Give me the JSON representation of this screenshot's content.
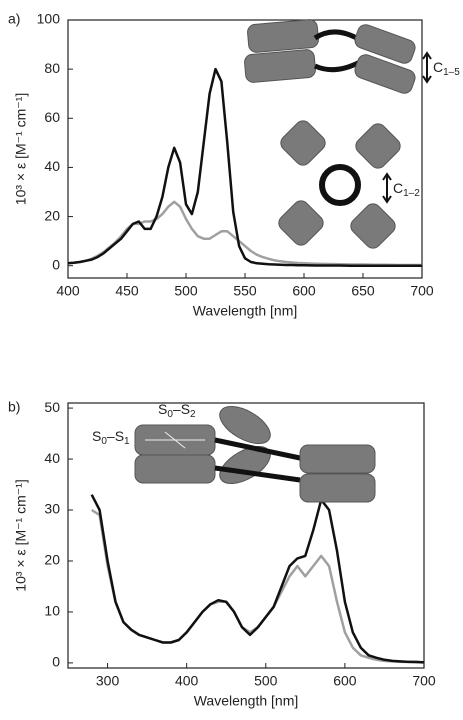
{
  "chart_data": [
    {
      "type": "line",
      "panel": "a)",
      "x_label": "Wavelength [nm]",
      "y_label": "10³ × ε [M⁻¹ cm⁻¹]",
      "annotations": [
        {
          "text": "C",
          "sub": "1–5"
        },
        {
          "text": "C",
          "sub": "1–2"
        }
      ],
      "xlim": [
        400,
        700
      ],
      "xticks": [
        400,
        450,
        500,
        550,
        600,
        650,
        700
      ],
      "ylim": [
        -5,
        100
      ],
      "yticks": [
        0,
        20,
        40,
        60,
        80,
        100
      ],
      "x": [
        400,
        405,
        410,
        415,
        420,
        425,
        430,
        435,
        440,
        445,
        450,
        455,
        460,
        465,
        470,
        475,
        480,
        485,
        490,
        495,
        500,
        505,
        510,
        515,
        520,
        525,
        530,
        535,
        540,
        545,
        550,
        555,
        560,
        565,
        570,
        575,
        580,
        585,
        590,
        595,
        600,
        610,
        620,
        630,
        640,
        650,
        660,
        670,
        680,
        690,
        700
      ],
      "series": [
        {
          "color": "#111111",
          "values": [
            1,
            1.2,
            1.5,
            2,
            2.5,
            3.5,
            5,
            7,
            9,
            11,
            14,
            17,
            18,
            15,
            15,
            20,
            28,
            40,
            48,
            42,
            25,
            21,
            30,
            50,
            70,
            80,
            75,
            50,
            22,
            8,
            3,
            1.5,
            1,
            0.8,
            0.6,
            0.5,
            0.4,
            0.3,
            0.3,
            0.2,
            0.2,
            0.1,
            0.1,
            0.1,
            0,
            0,
            0,
            0,
            0,
            0,
            0
          ]
        },
        {
          "color": "#a0a0a0",
          "values": [
            1,
            1.2,
            1.5,
            2,
            2.8,
            4,
            5.5,
            7.5,
            9.5,
            12,
            15,
            17,
            17,
            18,
            18,
            19,
            21,
            24,
            26,
            24,
            19,
            15,
            12,
            11,
            11,
            12.5,
            14,
            14,
            12,
            10,
            8,
            6,
            4.5,
            3.5,
            2.8,
            2.2,
            1.8,
            1.5,
            1.3,
            1.1,
            1,
            0.8,
            0.7,
            0.6,
            0.5,
            0.5,
            0.4,
            0.4,
            0.3,
            0.3,
            0.3
          ]
        }
      ]
    },
    {
      "type": "line",
      "panel": "b)",
      "x_label": "Wavelength [nm]",
      "y_label": "10³ × ε [M⁻¹ cm⁻¹]",
      "annotations": [
        {
          "text": "S",
          "sub": "0",
          "text2": "–S",
          "sub2": "1"
        },
        {
          "text": "S",
          "sub": "0",
          "text2": "–S",
          "sub2": "2"
        }
      ],
      "xlim": [
        250,
        700
      ],
      "xticks": [
        300,
        400,
        500,
        600,
        700
      ],
      "ylim": [
        -1,
        51
      ],
      "yticks": [
        0,
        10,
        20,
        30,
        40,
        50
      ],
      "x": [
        280,
        290,
        300,
        310,
        320,
        330,
        340,
        350,
        360,
        370,
        380,
        390,
        400,
        410,
        420,
        430,
        440,
        450,
        460,
        470,
        480,
        490,
        500,
        510,
        520,
        530,
        540,
        550,
        560,
        570,
        580,
        590,
        600,
        610,
        620,
        630,
        640,
        650,
        660,
        670,
        680,
        690,
        700
      ],
      "series": [
        {
          "color": "#111111",
          "values": [
            33,
            30,
            20,
            12,
            8,
            6.5,
            5.5,
            5,
            4.5,
            4,
            4,
            4.5,
            6,
            8,
            10,
            11.5,
            12.3,
            12,
            10,
            7,
            5.5,
            7,
            9,
            11,
            15,
            19,
            20.5,
            21,
            26,
            32,
            30,
            22,
            12,
            6,
            3,
            1.5,
            1,
            0.6,
            0.4,
            0.3,
            0.2,
            0.2,
            0.1
          ]
        },
        {
          "color": "#a0a0a0",
          "values": [
            30,
            29,
            19,
            12,
            8,
            6.5,
            5.5,
            5,
            4.5,
            4,
            4,
            4.5,
            6,
            8,
            10,
            11.5,
            12,
            12,
            10,
            7,
            6,
            7,
            9,
            11,
            14,
            17,
            19,
            17,
            19,
            21,
            19,
            12,
            6,
            3,
            1.5,
            1,
            0.6,
            0.4,
            0.3,
            0.2,
            0.2,
            0.1,
            0.1
          ]
        }
      ]
    }
  ]
}
